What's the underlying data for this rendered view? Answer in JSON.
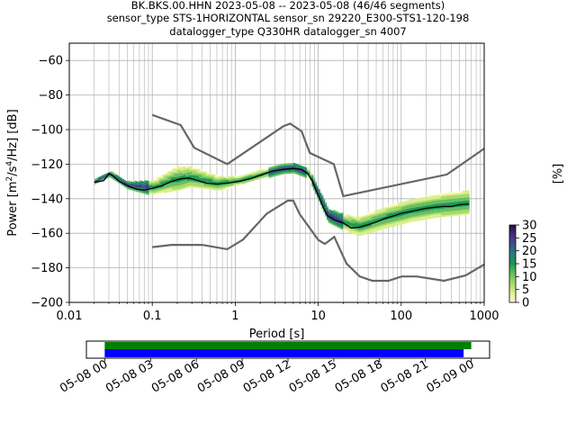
{
  "chart_data": {
    "type": "heatmap",
    "title_lines": [
      "BK.BKS.00.HHN   2023-05-08 -- 2023-05-08  (46/46 segments)",
      "sensor_type STS-1HORIZONTAL sensor_sn 29220_E300-STS1-120-198",
      "datalogger_type Q330HR datalogger_sn 4007"
    ],
    "xlabel": "Period [s]",
    "ylabel_main": "Power [m",
    "ylabel_sup1": "2",
    "ylabel_mid": "/s",
    "ylabel_sup2": "4",
    "ylabel_end": "/Hz] [dB]",
    "x_scale": "log",
    "xlim": [
      0.01,
      1000
    ],
    "ylim": [
      -200,
      -50
    ],
    "grid": true,
    "x_tick_labels": [
      "0.01",
      "0.1",
      "1",
      "10",
      "100",
      "1000"
    ],
    "x_tick_values": [
      0.01,
      0.1,
      1,
      10,
      100,
      1000
    ],
    "y_tick_labels": [
      "−60",
      "−80",
      "−100",
      "−120",
      "−140",
      "−160",
      "−180",
      "−200"
    ],
    "y_tick_values": [
      -60,
      -80,
      -100,
      -120,
      -140,
      -160,
      -180,
      -200
    ],
    "colorbar": {
      "label": "[%]",
      "range": [
        0,
        30
      ],
      "tick_labels": [
        "0",
        "5",
        "10",
        "15",
        "20",
        "25",
        "30"
      ],
      "tick_values": [
        0,
        5,
        10,
        15,
        20,
        25,
        30
      ],
      "colors": [
        "#ffffcc",
        "#d9ef8b",
        "#a6d96a",
        "#66bd63",
        "#1a9850",
        "#2c7c7a",
        "#3b528b",
        "#472d7b",
        "#2b0a3d"
      ]
    },
    "noise_models": {
      "color": "#666666",
      "nhnm": [
        [
          0.1,
          -91.5
        ],
        [
          0.22,
          -97.4
        ],
        [
          0.32,
          -110.5
        ],
        [
          0.8,
          -120.0
        ],
        [
          3.8,
          -98.0
        ],
        [
          4.6,
          -96.5
        ],
        [
          6.3,
          -101.0
        ],
        [
          7.9,
          -113.5
        ],
        [
          15.4,
          -120.0
        ],
        [
          20.0,
          -138.5
        ],
        [
          354.8,
          -126.0
        ],
        [
          1000,
          -111.0
        ]
      ],
      "nlnm": [
        [
          0.1,
          -168.0
        ],
        [
          0.17,
          -166.7
        ],
        [
          0.4,
          -166.7
        ],
        [
          0.8,
          -169.2
        ],
        [
          1.24,
          -163.7
        ],
        [
          2.4,
          -148.6
        ],
        [
          4.3,
          -141.1
        ],
        [
          5.0,
          -141.1
        ],
        [
          6.0,
          -149.0
        ],
        [
          10.0,
          -163.8
        ],
        [
          12.0,
          -166.2
        ],
        [
          15.6,
          -162.1
        ],
        [
          21.9,
          -177.5
        ],
        [
          31.6,
          -185.0
        ],
        [
          45.0,
          -187.5
        ],
        [
          70.0,
          -187.5
        ],
        [
          101.0,
          -185.0
        ],
        [
          154.0,
          -185.0
        ],
        [
          328.0,
          -187.5
        ],
        [
          600.0,
          -184.4
        ],
        [
          1000,
          -178.0
        ]
      ]
    },
    "mean_curve": {
      "color": "#000000",
      "points": [
        [
          0.02,
          -130.5
        ],
        [
          0.026,
          -129.5
        ],
        [
          0.03,
          -125.5
        ],
        [
          0.033,
          -126.5
        ],
        [
          0.04,
          -130.0
        ],
        [
          0.05,
          -132.5
        ],
        [
          0.065,
          -134.5
        ],
        [
          0.08,
          -135.0
        ],
        [
          0.1,
          -134.0
        ],
        [
          0.13,
          -132.5
        ],
        [
          0.17,
          -130.0
        ],
        [
          0.22,
          -128.5
        ],
        [
          0.28,
          -128.0
        ],
        [
          0.35,
          -129.5
        ],
        [
          0.45,
          -131.0
        ],
        [
          0.6,
          -131.5
        ],
        [
          0.8,
          -131.0
        ],
        [
          1.1,
          -130.0
        ],
        [
          1.5,
          -128.5
        ],
        [
          2.0,
          -126.5
        ],
        [
          2.8,
          -124.0
        ],
        [
          3.8,
          -123.0
        ],
        [
          5.0,
          -122.5
        ],
        [
          6.3,
          -123.0
        ],
        [
          7.5,
          -125.5
        ],
        [
          8.5,
          -130.0
        ],
        [
          10.0,
          -138.0
        ],
        [
          11.5,
          -145.0
        ],
        [
          13.0,
          -150.0
        ],
        [
          16.0,
          -152.5
        ],
        [
          20.0,
          -154.0
        ],
        [
          25.0,
          -157.0
        ],
        [
          31.0,
          -156.5
        ],
        [
          40.0,
          -155.0
        ],
        [
          50.0,
          -153.5
        ],
        [
          63.0,
          -151.5
        ],
        [
          80.0,
          -150.0
        ],
        [
          100.0,
          -148.5
        ],
        [
          126.0,
          -147.5
        ],
        [
          160.0,
          -146.5
        ],
        [
          200.0,
          -145.5
        ],
        [
          250.0,
          -145.0
        ],
        [
          316.0,
          -144.5
        ],
        [
          400.0,
          -144.5
        ],
        [
          500.0,
          -143.5
        ],
        [
          650.0,
          -143.0
        ]
      ]
    },
    "ppsd_bands": [
      {
        "center": [
          [
            0.02,
            -130.5
          ],
          [
            0.03,
            -126
          ],
          [
            0.05,
            -132.5
          ],
          [
            0.1,
            -134
          ],
          [
            0.17,
            -130
          ],
          [
            0.28,
            -128
          ],
          [
            0.6,
            -131.5
          ],
          [
            1.1,
            -130
          ],
          [
            2.0,
            -126.5
          ],
          [
            3.8,
            -123
          ],
          [
            5.0,
            -122.5
          ],
          [
            7.5,
            -125.5
          ],
          [
            10,
            -138
          ],
          [
            13,
            -150
          ],
          [
            20,
            -154
          ],
          [
            31,
            -156.5
          ],
          [
            63,
            -151.5
          ],
          [
            126,
            -147.5
          ],
          [
            250,
            -145
          ],
          [
            650,
            -143
          ]
        ],
        "spread_down": [
          [
            0.02,
            1.0
          ],
          [
            0.05,
            2.0
          ],
          [
            0.1,
            4.5
          ],
          [
            0.2,
            6.0
          ],
          [
            0.5,
            4.0
          ],
          [
            1.0,
            3.0
          ],
          [
            3.0,
            2.5
          ],
          [
            8.0,
            3.0
          ],
          [
            15,
            4.0
          ],
          [
            30,
            5.0
          ],
          [
            100,
            6.0
          ],
          [
            650,
            6.0
          ]
        ],
        "spread_up": [
          [
            0.02,
            1.0
          ],
          [
            0.05,
            2.0
          ],
          [
            0.1,
            4.0
          ],
          [
            0.2,
            8.0
          ],
          [
            0.5,
            5.0
          ],
          [
            1.0,
            3.0
          ],
          [
            3.0,
            2.5
          ],
          [
            8.0,
            3.0
          ],
          [
            15,
            4.0
          ],
          [
            30,
            6.0
          ],
          [
            100,
            7.0
          ],
          [
            650,
            8.0
          ]
        ]
      }
    ],
    "timeline": {
      "x_tick_labels": [
        "05-08 00",
        "05-08 03",
        "05-08 06",
        "05-08 09",
        "05-08 12",
        "05-08 15",
        "05-08 18",
        "05-08 21",
        "05-09 00"
      ],
      "x_tick_hours": [
        0,
        3,
        6,
        9,
        12,
        15,
        18,
        21,
        24
      ],
      "xlim_hours": [
        -1.2,
        25.2
      ],
      "data_coverage": {
        "color": "#008000",
        "start_hour": 0,
        "end_hour": 24.0
      },
      "processed_coverage": {
        "color": "#0000ff",
        "start_hour": 0,
        "end_hour": 23.5
      }
    }
  }
}
